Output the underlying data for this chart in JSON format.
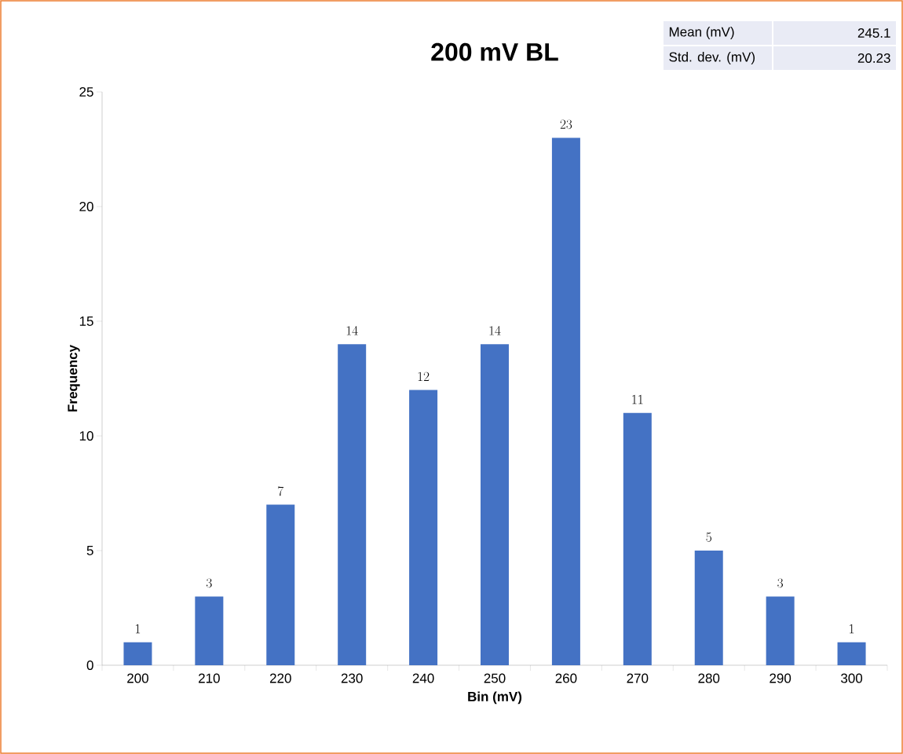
{
  "chart_data": {
    "type": "bar",
    "title": "200 mV BL",
    "xlabel": "Bin (mV)",
    "ylabel": "Frequency",
    "categories": [
      "200",
      "210",
      "220",
      "230",
      "240",
      "250",
      "260",
      "270",
      "280",
      "290",
      "300"
    ],
    "values": [
      1,
      3,
      7,
      14,
      12,
      14,
      23,
      11,
      5,
      3,
      1
    ],
    "color": "#4472c4",
    "ylim": [
      0,
      25
    ],
    "yticks": [
      0,
      5,
      10,
      15,
      20,
      25
    ],
    "grid": false,
    "data_labels": true,
    "annotations": [
      "Mean (mV)",
      "245.1",
      "Std. dev. (mV)",
      "20.23"
    ]
  }
}
